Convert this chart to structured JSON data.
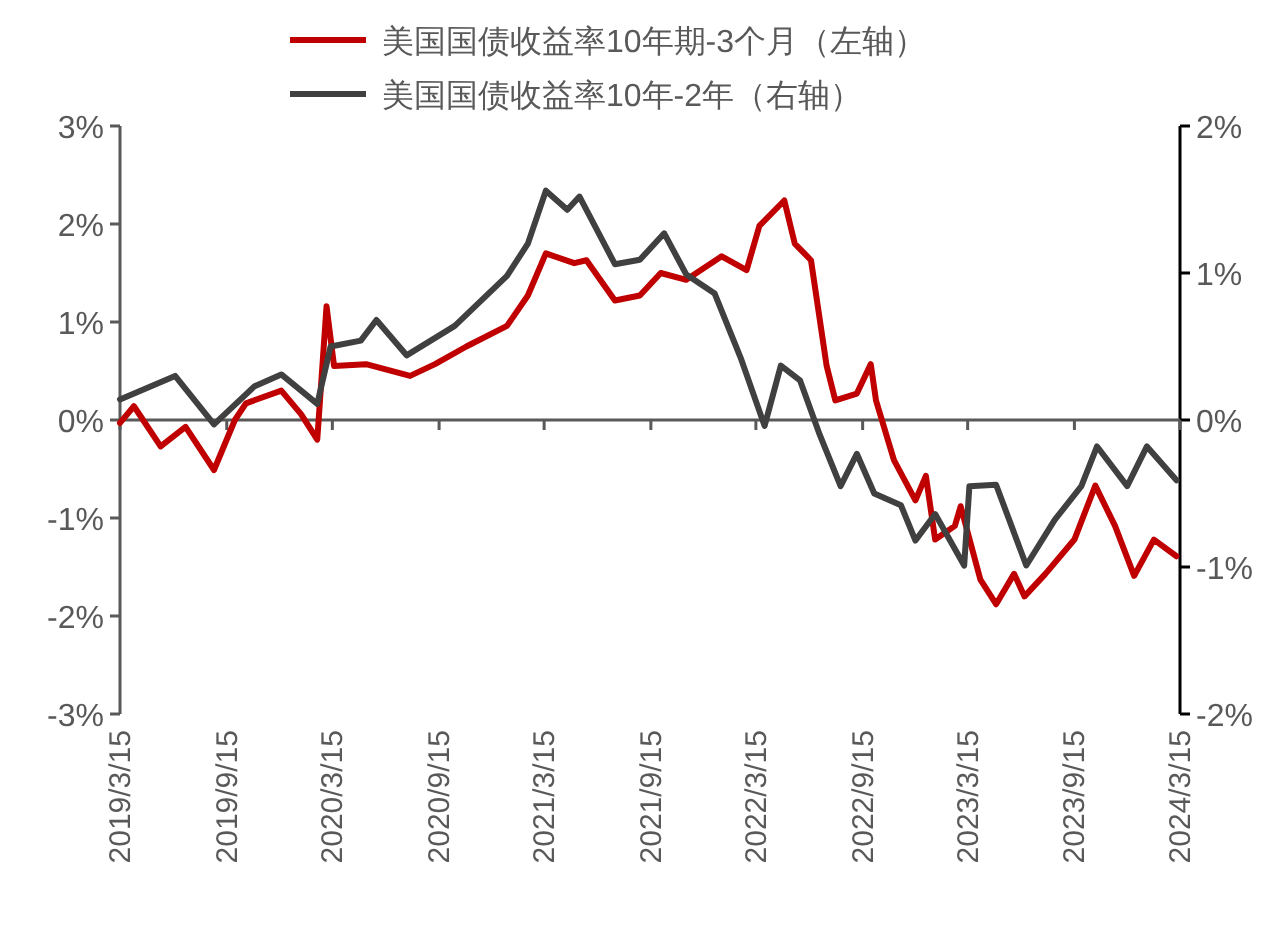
{
  "chart_data": {
    "type": "line",
    "legend": "top",
    "line_style": "solid",
    "xlim": [
      "2019-03-15",
      "2024-03-15"
    ],
    "xticks": [
      {
        "value": "2019-03-15",
        "label": "2019/3/15"
      },
      {
        "value": "2019-09-15",
        "label": "2019/9/15"
      },
      {
        "value": "2020-03-15",
        "label": "2020/3/15"
      },
      {
        "value": "2020-09-15",
        "label": "2020/9/15"
      },
      {
        "value": "2021-03-15",
        "label": "2021/3/15"
      },
      {
        "value": "2021-09-15",
        "label": "2021/9/15"
      },
      {
        "value": "2022-03-15",
        "label": "2022/3/15"
      },
      {
        "value": "2022-09-15",
        "label": "2022/9/15"
      },
      {
        "value": "2023-03-15",
        "label": "2023/3/15"
      },
      {
        "value": "2023-09-15",
        "label": "2023/9/15"
      },
      {
        "value": "2024-03-15",
        "label": "2024/3/15"
      }
    ],
    "ylim": [
      -3,
      3
    ],
    "yticks": [
      {
        "value": -3,
        "label": "-3%"
      },
      {
        "value": -2,
        "label": "-2%"
      },
      {
        "value": -1,
        "label": "-1%"
      },
      {
        "value": 0,
        "label": "0%"
      },
      {
        "value": 1,
        "label": "1%"
      },
      {
        "value": 2,
        "label": "2%"
      },
      {
        "value": 3,
        "label": "3%"
      }
    ],
    "y2lim": [
      -2,
      2
    ],
    "y2ticks": [
      {
        "value": -2,
        "label": "-2%"
      },
      {
        "value": -1,
        "label": "-1%"
      },
      {
        "value": 0,
        "label": "0%"
      },
      {
        "value": 1,
        "label": "1%"
      },
      {
        "value": 2,
        "label": "2%"
      }
    ],
    "series": [
      {
        "name": "美国国债收益率10年期-3个月（左轴）",
        "color": "#c00000",
        "axis": "y",
        "x": [
          "2019-03-15",
          "2019-04-08",
          "2019-05-24",
          "2019-07-06",
          "2019-08-24",
          "2019-09-29",
          "2019-10-18",
          "2019-12-18",
          "2020-01-21",
          "2020-02-18",
          "2020-03-05",
          "2020-03-18",
          "2020-05-12",
          "2020-07-27",
          "2020-09-08",
          "2020-11-01",
          "2021-01-10",
          "2021-02-15",
          "2021-03-18",
          "2021-05-06",
          "2021-05-27",
          "2021-07-15",
          "2021-08-27",
          "2021-10-02",
          "2021-11-15",
          "2022-01-15",
          "2022-02-27",
          "2022-03-21",
          "2022-05-03",
          "2022-05-21",
          "2022-06-18",
          "2022-07-15",
          "2022-07-30",
          "2022-09-05",
          "2022-09-29",
          "2022-10-08",
          "2022-11-08",
          "2022-12-15",
          "2023-01-02",
          "2023-01-18",
          "2023-02-21",
          "2023-03-03",
          "2023-04-06",
          "2023-05-03",
          "2023-06-03",
          "2023-06-21",
          "2023-07-27",
          "2023-09-15",
          "2023-10-21",
          "2023-11-24",
          "2023-12-27",
          "2024-01-30",
          "2024-03-09"
        ],
        "values": [
          -0.03,
          0.14,
          -0.27,
          -0.07,
          -0.51,
          0,
          0.17,
          0.3,
          0.06,
          -0.2,
          1.16,
          0.55,
          0.57,
          0.45,
          0.57,
          0.75,
          0.96,
          1.27,
          1.7,
          1.6,
          1.63,
          1.22,
          1.27,
          1.5,
          1.43,
          1.67,
          1.53,
          1.98,
          2.24,
          1.8,
          1.63,
          0.55,
          0.2,
          0.27,
          0.57,
          0.2,
          -0.41,
          -0.82,
          -0.57,
          -1.22,
          -1.08,
          -0.88,
          -1.63,
          -1.88,
          -1.57,
          -1.8,
          -1.57,
          -1.22,
          -0.67,
          -1.08,
          -1.59,
          -1.22,
          -1.39
        ]
      },
      {
        "name": "美国国债收益率10年-2年（右轴）",
        "color": "#404040",
        "axis": "y2",
        "x": [
          "2019-03-15",
          "2019-06-18",
          "2019-08-24",
          "2019-11-02",
          "2019-12-18",
          "2020-02-18",
          "2020-03-12",
          "2020-05-03",
          "2020-05-30",
          "2020-07-21",
          "2020-10-12",
          "2021-01-10",
          "2021-02-15",
          "2021-03-18",
          "2021-04-24",
          "2021-05-15",
          "2021-07-15",
          "2021-08-27",
          "2021-10-08",
          "2021-11-15",
          "2022-01-03",
          "2022-02-18",
          "2022-03-30",
          "2022-04-27",
          "2022-05-30",
          "2022-07-03",
          "2022-08-08",
          "2022-09-05",
          "2022-10-05",
          "2022-11-20",
          "2022-12-15",
          "2023-01-18",
          "2023-03-09",
          "2023-03-18",
          "2023-05-03",
          "2023-06-24",
          "2023-08-12",
          "2023-09-27",
          "2023-10-24",
          "2023-12-15",
          "2024-01-18",
          "2024-03-09"
        ],
        "values": [
          0.14,
          0.3,
          -0.03,
          0.23,
          0.31,
          0.11,
          0.5,
          0.54,
          0.68,
          0.44,
          0.64,
          0.98,
          1.2,
          1.56,
          1.43,
          1.52,
          1.06,
          1.09,
          1.27,
          0.99,
          0.86,
          0.41,
          -0.04,
          0.37,
          0.27,
          -0.1,
          -0.45,
          -0.23,
          -0.5,
          -0.58,
          -0.82,
          -0.64,
          -0.99,
          -0.45,
          -0.44,
          -0.99,
          -0.68,
          -0.45,
          -0.18,
          -0.45,
          -0.18,
          -0.41
        ]
      }
    ]
  }
}
